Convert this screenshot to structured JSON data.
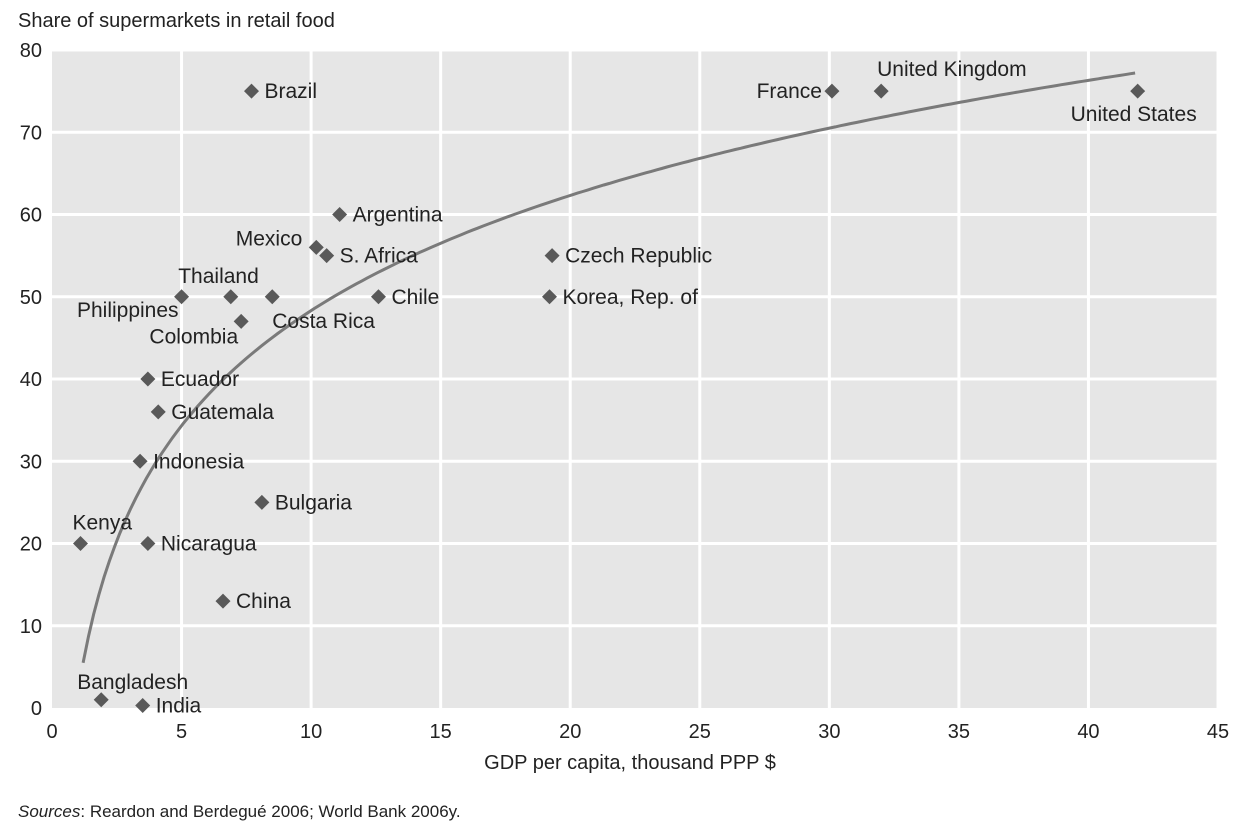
{
  "chart_data": {
    "type": "scatter",
    "title": "",
    "ylabel": "Share of supermarkets in retail food",
    "xlabel": "GDP per capita, thousand PPP $",
    "xlim": [
      0,
      45
    ],
    "ylim": [
      0,
      80
    ],
    "xticks": [
      0,
      5,
      10,
      15,
      20,
      25,
      30,
      35,
      40,
      45
    ],
    "yticks": [
      0,
      10,
      20,
      30,
      40,
      50,
      60,
      70,
      80
    ],
    "grid": true,
    "marker_color": "#595959",
    "curve_color": "#7a7a7a",
    "plot_background": "#e6e6e6",
    "points": [
      {
        "label": "Brazil",
        "x": 7.7,
        "y": 75,
        "label_pos": "right"
      },
      {
        "label": "France",
        "x": 30.1,
        "y": 75,
        "label_pos": "left"
      },
      {
        "label": "United Kingdom",
        "x": 32.0,
        "y": 75,
        "label_pos": "above-right"
      },
      {
        "label": "United States",
        "x": 41.9,
        "y": 75,
        "label_pos": "below"
      },
      {
        "label": "Argentina",
        "x": 11.1,
        "y": 60,
        "label_pos": "right"
      },
      {
        "label": "Mexico",
        "x": 10.2,
        "y": 56,
        "label_pos": "left-above"
      },
      {
        "label": "S. Africa",
        "x": 10.6,
        "y": 55,
        "label_pos": "right"
      },
      {
        "label": "Czech Republic",
        "x": 19.3,
        "y": 55,
        "label_pos": "right"
      },
      {
        "label": "Thailand",
        "x": 6.9,
        "y": 50,
        "label_pos": "above-left"
      },
      {
        "label": "Philippines",
        "x": 5.0,
        "y": 50,
        "label_pos": "below-left"
      },
      {
        "label": "Costa Rica",
        "x": 8.5,
        "y": 50,
        "label_pos": "below-right"
      },
      {
        "label": "Chile",
        "x": 12.6,
        "y": 50,
        "label_pos": "right"
      },
      {
        "label": "Korea, Rep. of",
        "x": 19.2,
        "y": 50,
        "label_pos": "right"
      },
      {
        "label": "Colombia",
        "x": 7.3,
        "y": 47,
        "label_pos": "below-left"
      },
      {
        "label": "Ecuador",
        "x": 3.7,
        "y": 40,
        "label_pos": "right"
      },
      {
        "label": "Guatemala",
        "x": 4.1,
        "y": 36,
        "label_pos": "right"
      },
      {
        "label": "Indonesia",
        "x": 3.4,
        "y": 30,
        "label_pos": "right"
      },
      {
        "label": "Bulgaria",
        "x": 8.1,
        "y": 25,
        "label_pos": "right"
      },
      {
        "label": "Kenya",
        "x": 1.1,
        "y": 20,
        "label_pos": "above"
      },
      {
        "label": "Nicaragua",
        "x": 3.7,
        "y": 20,
        "label_pos": "right"
      },
      {
        "label": "China",
        "x": 6.6,
        "y": 13,
        "label_pos": "right"
      },
      {
        "label": "Bangladesh",
        "x": 1.9,
        "y": 1,
        "label_pos": "above"
      },
      {
        "label": "India",
        "x": 3.5,
        "y": 0.3,
        "label_pos": "right"
      }
    ],
    "trendline": {
      "type": "logarithmic",
      "x_start": 1.2,
      "x_end": 41.8
    }
  },
  "sources": {
    "prefix": "Sources",
    "text": ": Reardon and Berdegué 2006; World Bank 2006y."
  }
}
